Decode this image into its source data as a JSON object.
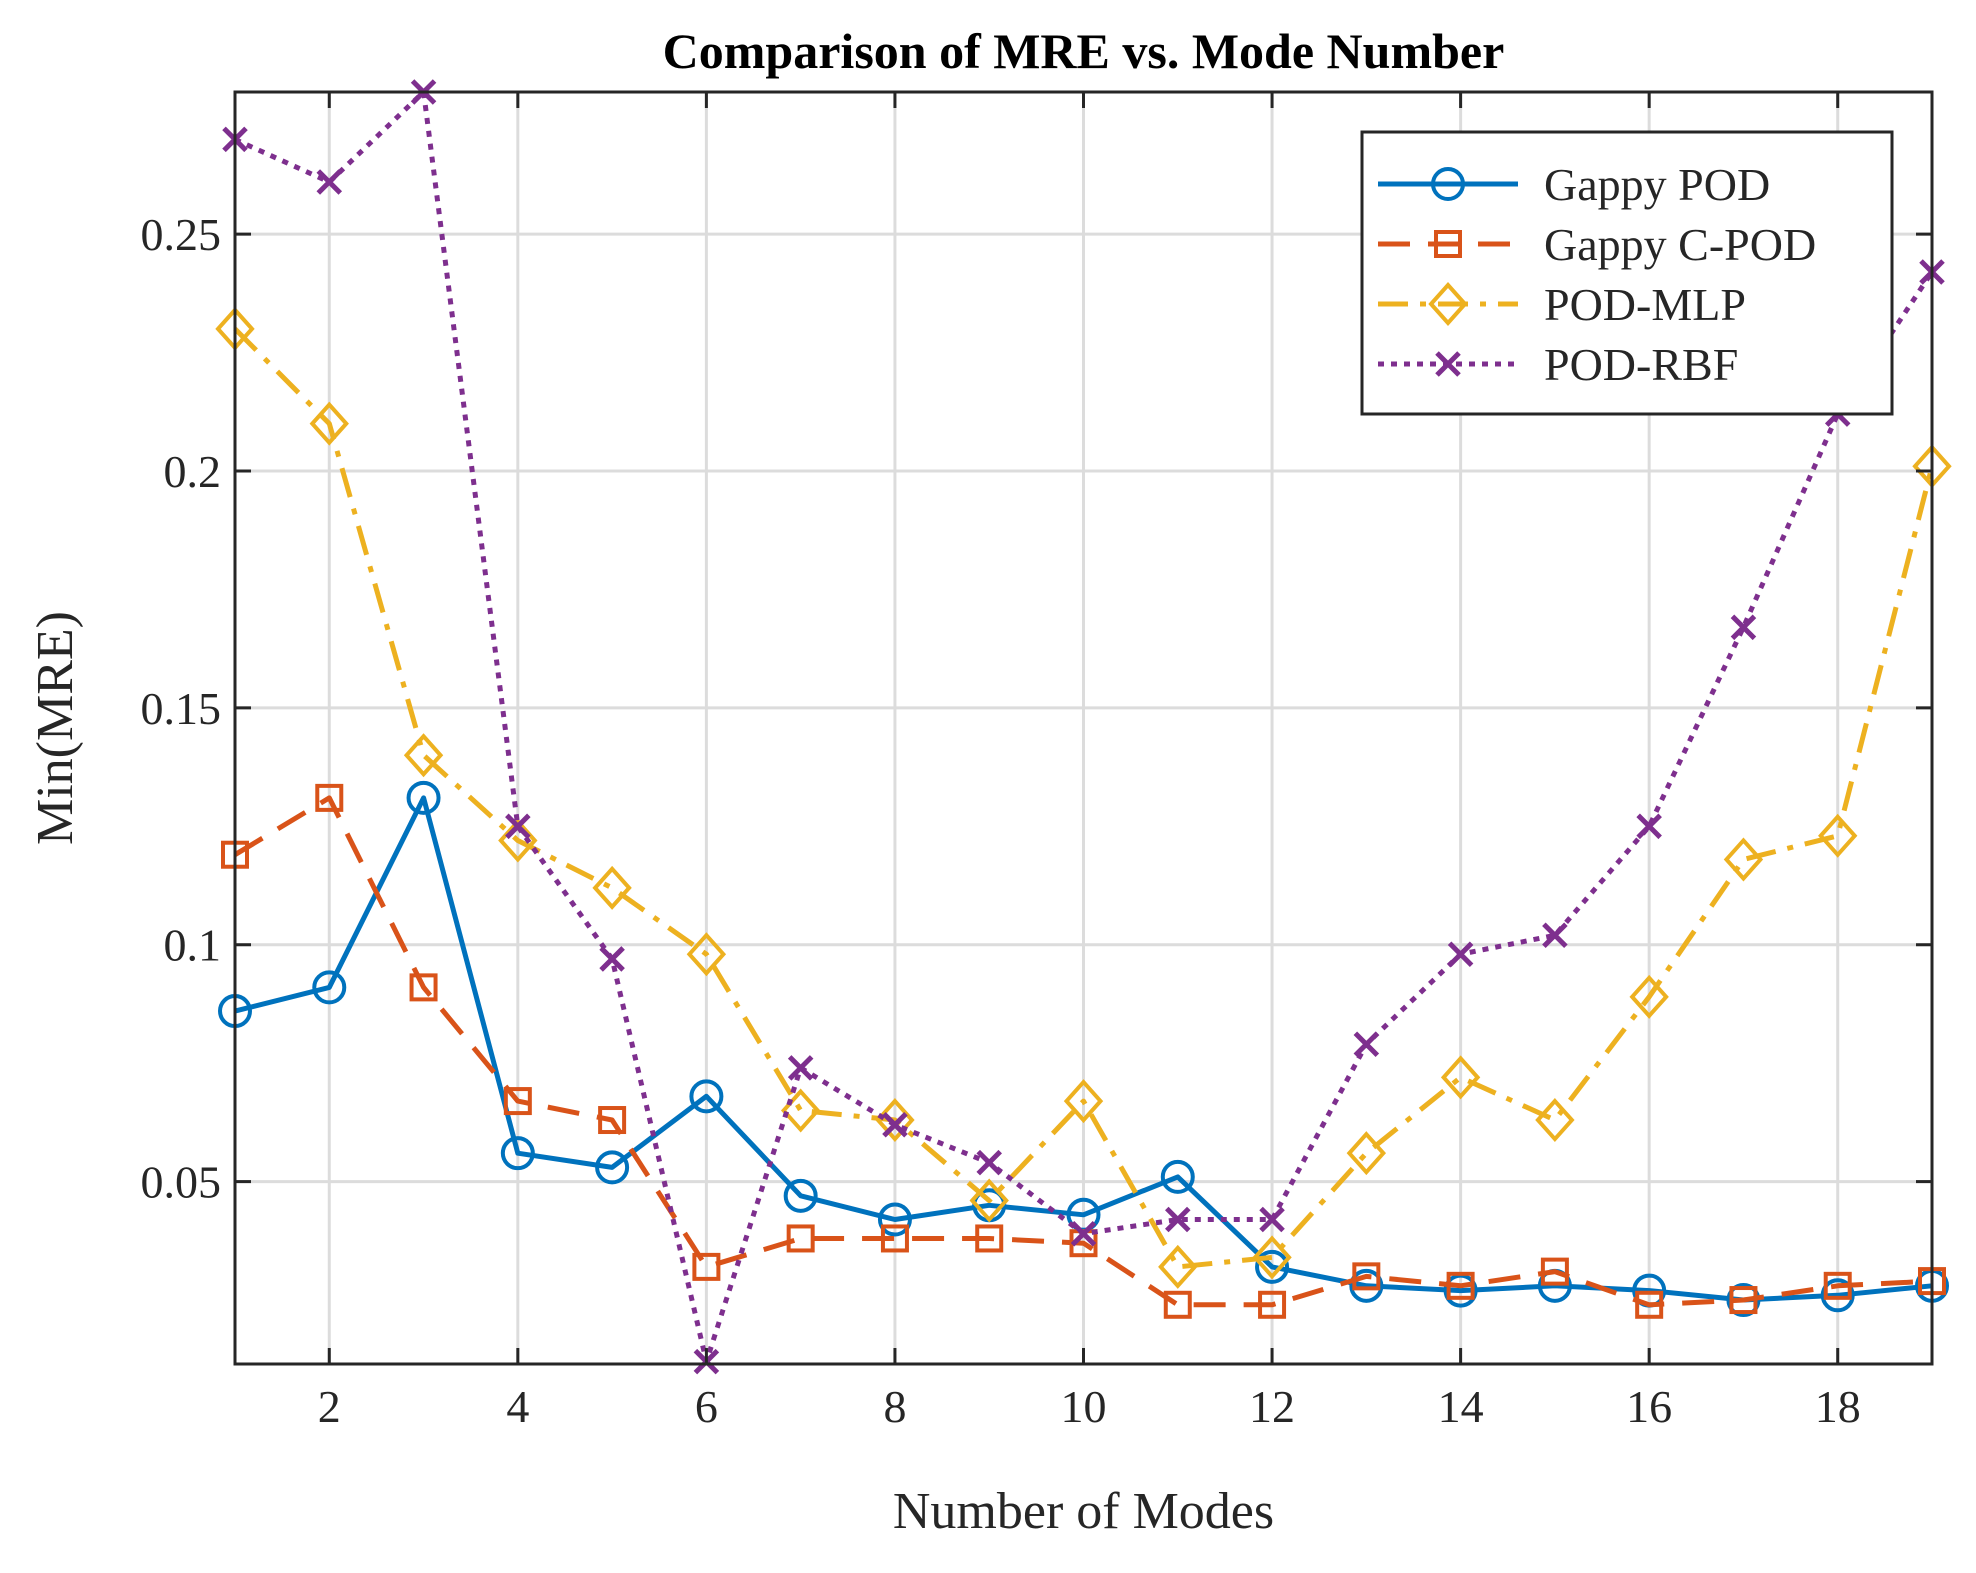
{
  "chart_data": {
    "type": "line",
    "title": "Comparison of MRE vs. Mode Number",
    "xlabel": "Number of Modes",
    "ylabel": "Min(MRE)",
    "xlim": [
      1,
      19
    ],
    "ylim": [
      0.0115,
      0.28
    ],
    "xticks": [
      2,
      4,
      6,
      8,
      10,
      12,
      14,
      16,
      18
    ],
    "xtick_labels": [
      "2",
      "4",
      "6",
      "8",
      "10",
      "12",
      "14",
      "16",
      "18"
    ],
    "yticks": [
      0.05,
      0.1,
      0.15,
      0.2,
      0.25
    ],
    "ytick_labels": [
      "0.05",
      "0.1",
      "0.15",
      "0.2",
      "0.25"
    ],
    "grid": true,
    "legend_position": "top-right",
    "x": [
      1,
      2,
      3,
      4,
      5,
      6,
      7,
      8,
      9,
      10,
      11,
      12,
      13,
      14,
      15,
      16,
      17,
      18,
      19
    ],
    "series": [
      {
        "name": "Gappy POD",
        "color": "#0072BD",
        "dash": "solid",
        "marker": "circle",
        "values": [
          0.086,
          0.091,
          0.131,
          0.056,
          0.053,
          0.068,
          0.047,
          0.042,
          0.045,
          0.043,
          0.051,
          0.032,
          0.028,
          0.027,
          0.028,
          0.027,
          0.025,
          0.026,
          0.028
        ]
      },
      {
        "name": "Gappy C-POD",
        "color": "#D95319",
        "dash": "dashed",
        "marker": "square",
        "values": [
          0.119,
          0.131,
          0.091,
          0.067,
          0.063,
          0.032,
          0.038,
          0.038,
          0.038,
          0.037,
          0.024,
          0.024,
          0.03,
          0.028,
          0.031,
          0.024,
          0.025,
          0.028,
          0.029
        ]
      },
      {
        "name": "POD-MLP",
        "color": "#EDB120",
        "dash": "dashdot",
        "marker": "diamond",
        "values": [
          0.23,
          0.21,
          0.14,
          0.122,
          0.112,
          0.098,
          0.065,
          0.063,
          0.046,
          0.067,
          0.032,
          0.034,
          0.056,
          0.072,
          0.063,
          0.089,
          0.118,
          0.123,
          0.201
        ]
      },
      {
        "name": "POD-RBF",
        "color": "#7E2F8E",
        "dash": "dotted",
        "marker": "x",
        "values": [
          0.27,
          0.261,
          0.28,
          0.125,
          0.097,
          0.012,
          0.074,
          0.062,
          0.054,
          0.039,
          0.042,
          0.042,
          0.079,
          0.098,
          0.102,
          0.125,
          0.167,
          0.212,
          0.242
        ]
      }
    ]
  }
}
